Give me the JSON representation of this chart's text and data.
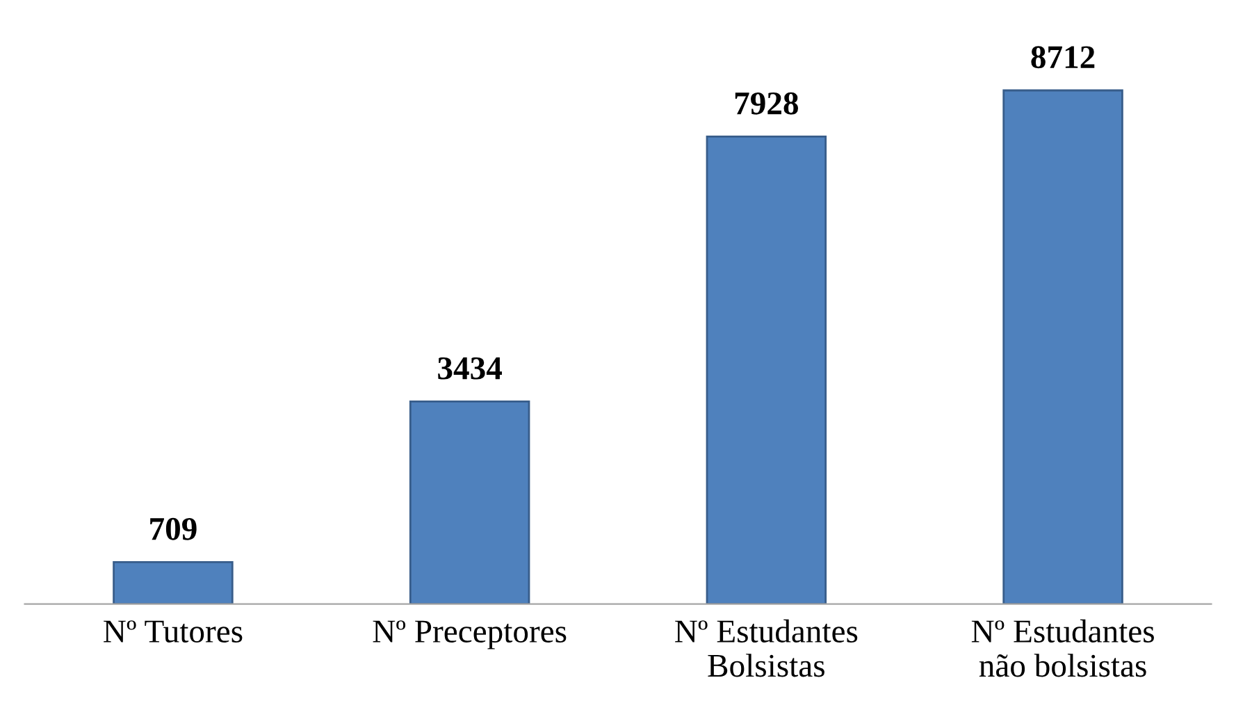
{
  "chart_data": {
    "type": "bar",
    "categories": [
      "Nº Tutores",
      "Nº Preceptores",
      "Nº Estudantes\nBolsistas",
      "Nº Estudantes\nnão bolsistas"
    ],
    "values": [
      709,
      3434,
      7928,
      8712
    ],
    "color": "#4f81bd",
    "data_labels": true,
    "grid": false,
    "legend": false
  }
}
